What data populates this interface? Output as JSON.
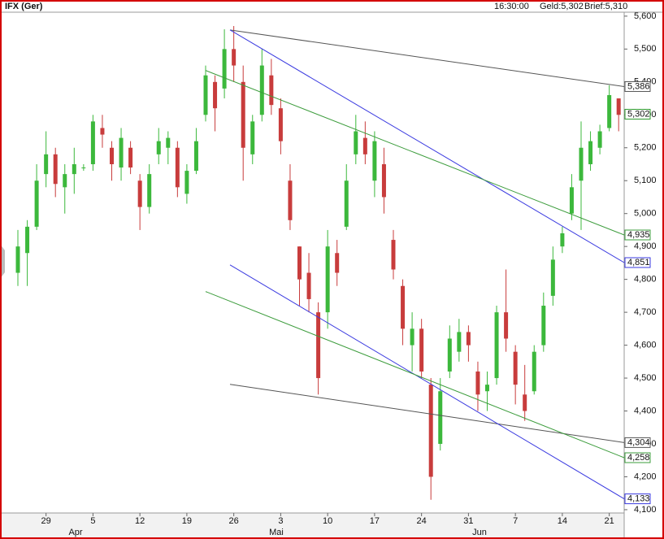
{
  "chart_data": {
    "type": "candlestick",
    "header": {
      "instrument": "IFX (Ger)",
      "time": "16:30:00",
      "bid": "Geld:5,302",
      "ask": "Brief:5,310"
    },
    "categories": [
      null,
      null,
      null,
      "29",
      null,
      null,
      null,
      null,
      "5",
      null,
      null,
      null,
      null,
      "12",
      null,
      null,
      null,
      null,
      "19",
      null,
      null,
      null,
      null,
      "26",
      null,
      null,
      null,
      null,
      "3",
      null,
      null,
      null,
      null,
      "10",
      null,
      null,
      null,
      null,
      "17",
      null,
      null,
      null,
      null,
      "24",
      null,
      null,
      null,
      null,
      "31",
      null,
      null,
      null,
      null,
      "7",
      null,
      null,
      null,
      null,
      "14",
      null,
      null,
      null,
      null,
      "21",
      null
    ],
    "months": [
      "Apr",
      "Mai",
      "Jun"
    ],
    "open": [
      4820,
      4880,
      4960,
      5120,
      5180,
      5080,
      5120,
      5140,
      5150,
      5260,
      5200,
      5140,
      5200,
      5100,
      5020,
      5180,
      5200,
      5200,
      5060,
      5130,
      5300,
      5400,
      5380,
      5500,
      5400,
      5180,
      5300,
      5420,
      5320,
      5100,
      4900,
      4820,
      4700,
      4700,
      4880,
      4960,
      5180,
      5230,
      5100,
      5150,
      4920,
      4780,
      4600,
      4650,
      4480,
      4300,
      4520,
      4580,
      4640,
      4520,
      4460,
      4500,
      4700,
      4580,
      4450,
      4460,
      4600,
      4750,
      4900,
      5000,
      5100,
      5150,
      5200,
      5260,
      5350
    ],
    "high": [
      4950,
      4980,
      5150,
      5250,
      5200,
      5150,
      5200,
      5150,
      5300,
      5300,
      5220,
      5260,
      5220,
      5120,
      5150,
      5260,
      5250,
      5220,
      5150,
      5260,
      5450,
      5420,
      5560,
      5570,
      5450,
      5300,
      5500,
      5470,
      5350,
      5150,
      4900,
      4880,
      4730,
      4950,
      4920,
      5150,
      5300,
      5280,
      5250,
      5200,
      4950,
      4800,
      4700,
      4680,
      4500,
      4500,
      4660,
      4680,
      4660,
      4550,
      4520,
      4720,
      4830,
      4600,
      4540,
      4600,
      4760,
      4900,
      4960,
      5120,
      5280,
      5250,
      5270,
      5390,
      5350
    ],
    "low": [
      4780,
      4780,
      4950,
      5080,
      5050,
      5000,
      5060,
      5130,
      5130,
      5200,
      5100,
      5100,
      5120,
      4950,
      5000,
      5150,
      5150,
      5050,
      5030,
      5120,
      5280,
      5250,
      5350,
      5400,
      5100,
      5150,
      5280,
      5300,
      5180,
      4950,
      4720,
      4700,
      4450,
      4650,
      4780,
      4950,
      5150,
      5150,
      5050,
      5000,
      4800,
      4600,
      4520,
      4500,
      4130,
      4280,
      4500,
      4550,
      4550,
      4400,
      4400,
      4480,
      4580,
      4420,
      4370,
      4450,
      4580,
      4720,
      4880,
      4980,
      4950,
      5130,
      5180,
      5250,
      5250
    ],
    "close": [
      4900,
      4960,
      5100,
      5180,
      5090,
      5120,
      5150,
      5140,
      5280,
      5240,
      5150,
      5230,
      5140,
      5020,
      5120,
      5220,
      5230,
      5080,
      5130,
      5220,
      5420,
      5320,
      5500,
      5450,
      5200,
      5280,
      5450,
      5330,
      5220,
      4980,
      4800,
      4740,
      4500,
      4900,
      4820,
      5100,
      5250,
      5180,
      5220,
      5050,
      4830,
      4650,
      4650,
      4520,
      4200,
      4460,
      4620,
      4640,
      4600,
      4450,
      4480,
      4700,
      4620,
      4480,
      4400,
      4580,
      4720,
      4860,
      4940,
      5080,
      5200,
      5220,
      5250,
      5360,
      5300
    ],
    "up_color": "#3cb83c",
    "down_color": "#c83c3c",
    "ylim": [
      4090,
      5612
    ],
    "yticks": [
      {
        "value": 4100,
        "label": "4,100"
      },
      {
        "value": 4200,
        "label": "4,200"
      },
      {
        "value": 4300,
        "label": "4,300"
      },
      {
        "value": 4400,
        "label": "4,400"
      },
      {
        "value": 4500,
        "label": "4,500"
      },
      {
        "value": 4600,
        "label": "4,600"
      },
      {
        "value": 4700,
        "label": "4,700"
      },
      {
        "value": 4800,
        "label": "4,800"
      },
      {
        "value": 4900,
        "label": "4,900"
      },
      {
        "value": 5000,
        "label": "5,000"
      },
      {
        "value": 5100,
        "label": "5,100"
      },
      {
        "value": 5200,
        "label": "5,200"
      },
      {
        "value": 5300,
        "label": "5,300"
      },
      {
        "value": 5400,
        "label": "5,400"
      },
      {
        "value": 5500,
        "label": "5,500"
      },
      {
        "value": 5600,
        "label": "5,600"
      }
    ],
    "last_price": {
      "value": 5302,
      "label": "5,302",
      "color": "#2e9a2e"
    },
    "trendlines": [
      {
        "start": 5558,
        "value": 5386,
        "label": "5,386",
        "color": "#555555"
      },
      {
        "start": 5558,
        "value": 4851,
        "label": "4,851",
        "color": "#3a3ae0"
      },
      {
        "start": 5435,
        "value": 4935,
        "label": "4,935",
        "color": "#3c9c3c"
      },
      {
        "start": 4481,
        "value": 4304,
        "label": "4,304",
        "color": "#555555"
      },
      {
        "start": 4844,
        "value": 4133,
        "label": "4,133",
        "color": "#3a3ae0"
      },
      {
        "start": 4763,
        "value": 4258,
        "label": "4,258",
        "color": "#3c9c3c"
      }
    ]
  }
}
